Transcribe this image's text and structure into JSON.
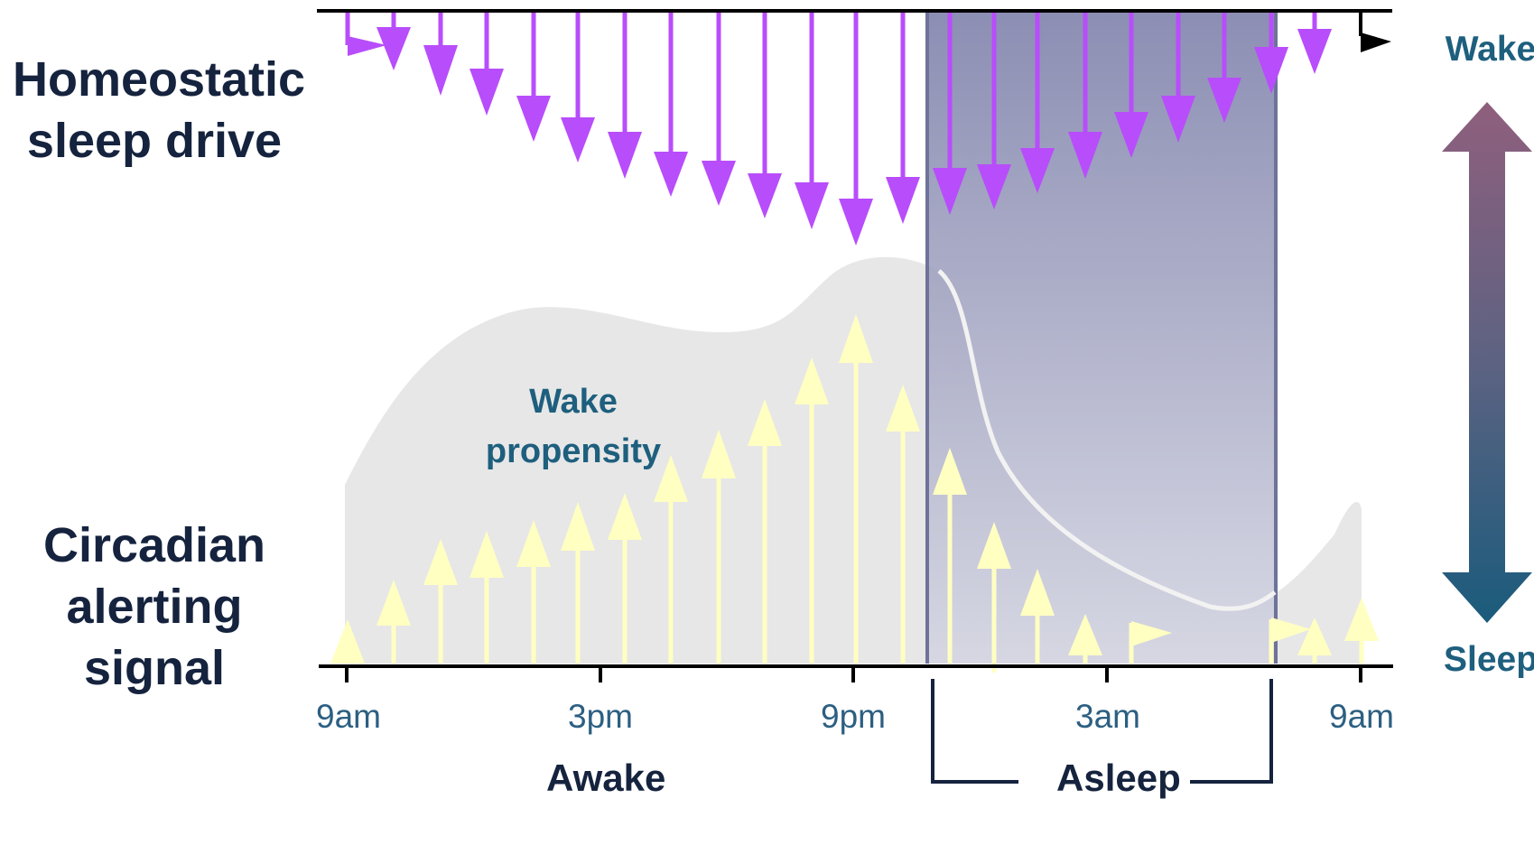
{
  "labels": {
    "homeostatic": "Homeostatic\nsleep drive",
    "circadian": "Circadian\nalerting\nsignal",
    "wake_propensity": "Wake\npropensity",
    "awake": "Awake",
    "asleep": "Asleep",
    "wake": "Wake",
    "sleep": "Sleep"
  },
  "time_axis": {
    "ticks": [
      "9am",
      "3pm",
      "9pm",
      "3am",
      "9am"
    ]
  },
  "colors": {
    "drive_arrow": "#b84dfb",
    "alert_arrow": "#ffffc2",
    "sleep_band": "#7b7fa8",
    "wake_curve": "#e6e6e6",
    "scale_top": "#8e5f7c",
    "scale_bottom": "#1a5a7b",
    "text_dark": "#15233e",
    "text_blue": "#1e5f7e"
  },
  "icons": {
    "drive": "arrow-down",
    "alert": "arrow-up",
    "scale": "double-headed-arrow"
  }
}
